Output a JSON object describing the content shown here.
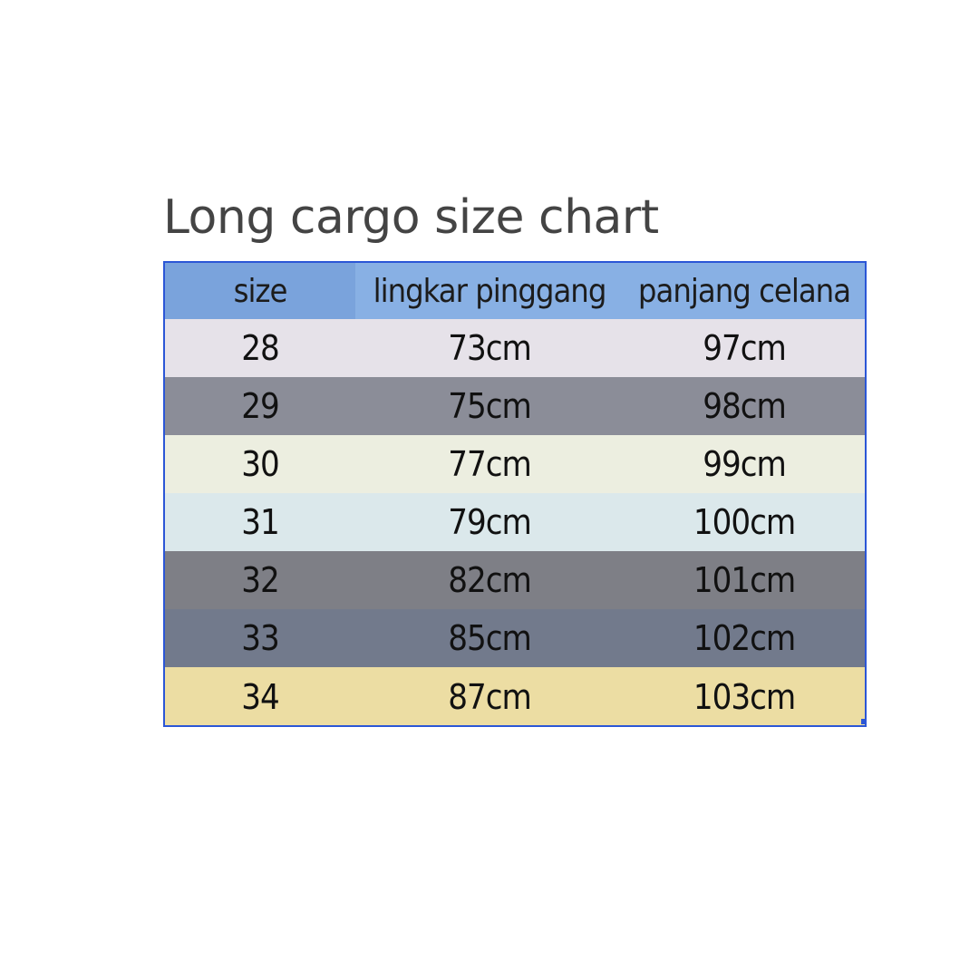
{
  "title": "Long cargo size chart",
  "table": {
    "headers": [
      "size",
      "lingkar pinggang",
      "panjang celana"
    ],
    "rows": [
      [
        "28",
        "73cm",
        "97cm"
      ],
      [
        "29",
        "75cm",
        "98cm"
      ],
      [
        "30",
        "77cm",
        "99cm"
      ],
      [
        "31",
        "79cm",
        "100cm"
      ],
      [
        "32",
        "82cm",
        "101cm"
      ],
      [
        "33",
        "85cm",
        "102cm"
      ],
      [
        "34",
        "87cm",
        "103cm"
      ]
    ]
  },
  "colors": {
    "border": "#2b56d6",
    "header": "#88b0e4",
    "row_backgrounds": [
      "#e6e2e9",
      "#8b8d98",
      "#eceee0",
      "#dbe8eb",
      "#7e7f86",
      "#727a8c",
      "#ecdda3"
    ]
  }
}
